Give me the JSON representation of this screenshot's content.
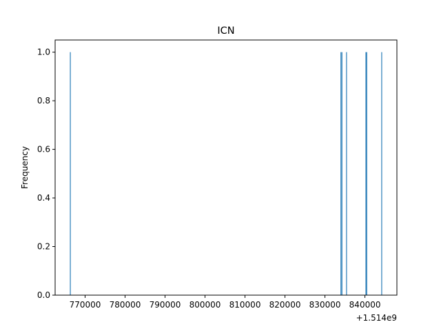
{
  "chart_data": {
    "type": "bar",
    "title": "ICN",
    "xlabel": "",
    "ylabel": "Frequency",
    "x_offset_label": "+1.514e9",
    "xlim": [
      762500,
      848000
    ],
    "ylim": [
      0,
      1.05
    ],
    "xticks": [
      770000,
      780000,
      790000,
      800000,
      810000,
      820000,
      830000,
      840000
    ],
    "xtick_labels": [
      "770000",
      "780000",
      "790000",
      "800000",
      "810000",
      "820000",
      "830000",
      "840000"
    ],
    "yticks": [
      0.0,
      0.2,
      0.4,
      0.6,
      0.8,
      1.0
    ],
    "ytick_labels": [
      "0.0",
      "0.2",
      "0.4",
      "0.6",
      "0.8",
      "1.0"
    ],
    "bar_width": 200,
    "bars": [
      {
        "x": 766300,
        "value": 1
      },
      {
        "x": 834000,
        "value": 1
      },
      {
        "x": 834250,
        "value": 1
      },
      {
        "x": 835400,
        "value": 1
      },
      {
        "x": 840250,
        "value": 1
      },
      {
        "x": 840450,
        "value": 1
      },
      {
        "x": 844200,
        "value": 1
      }
    ],
    "grid": false,
    "bar_color": "#1f77b4"
  }
}
